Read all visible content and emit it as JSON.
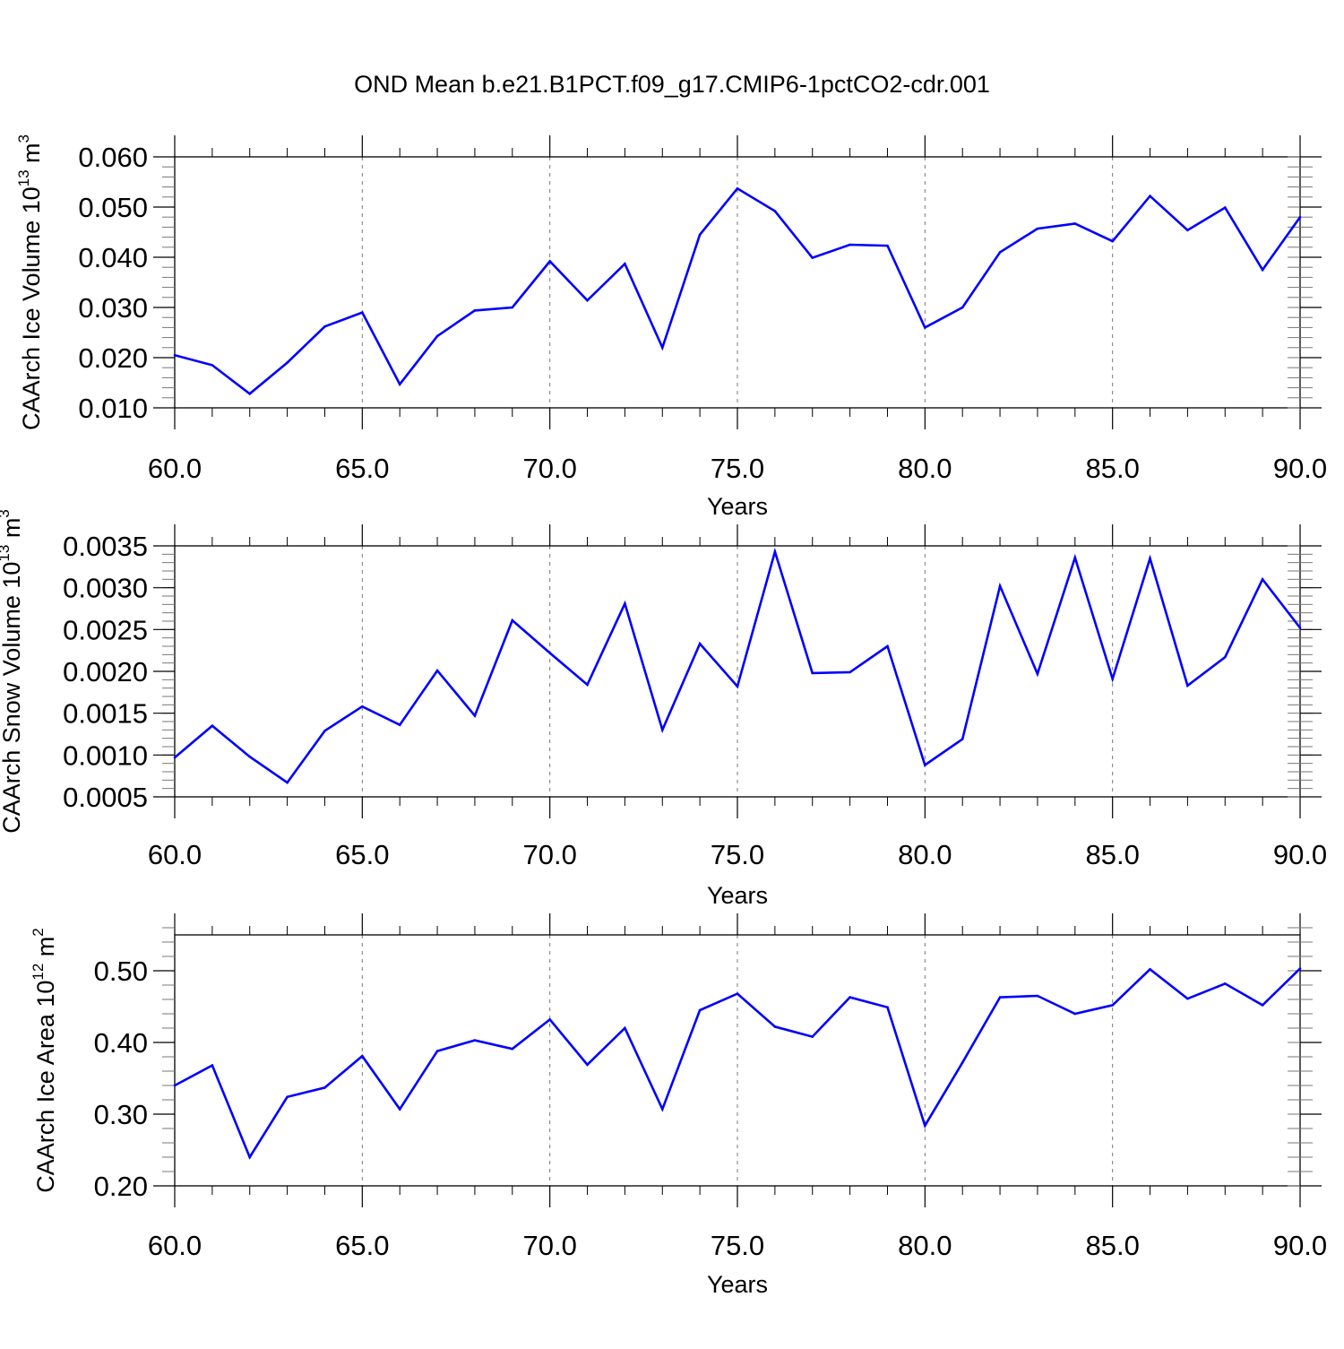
{
  "figure": {
    "title": "OND Mean b.e21.B1PCT.f09_g17.CMIP6-1pctCO2-cdr.001",
    "line_color": "#0000ff"
  },
  "chart_data": [
    {
      "type": "line",
      "ylabel_main": "CAArch Ice Volume 10",
      "ylabel_exp": "13",
      "ylabel_unit": " m",
      "ylabel_unit_exp": "3",
      "xlabel": "Years",
      "xlim": [
        60,
        90
      ],
      "ylim": [
        0.01,
        0.06
      ],
      "xticks": [
        60,
        65,
        70,
        75,
        80,
        85,
        90
      ],
      "xtick_labels": [
        "60.0",
        "65.0",
        "70.0",
        "75.0",
        "80.0",
        "85.0",
        "90.0"
      ],
      "yticks": [
        0.01,
        0.02,
        0.03,
        0.04,
        0.05,
        0.06
      ],
      "ytick_labels": [
        "0.010",
        "0.020",
        "0.030",
        "0.040",
        "0.050",
        "0.060"
      ],
      "y_minor_step": 0.002,
      "grid": "dashed vertical at major x ticks",
      "x": [
        60,
        61,
        62,
        63,
        64,
        65,
        66,
        67,
        68,
        69,
        70,
        71,
        72,
        73,
        74,
        75,
        76,
        77,
        78,
        79,
        80,
        81,
        82,
        83,
        84,
        85,
        86,
        87,
        88,
        89,
        90
      ],
      "values": [
        0.0205,
        0.0185,
        0.0128,
        0.019,
        0.0262,
        0.029,
        0.0147,
        0.0243,
        0.0294,
        0.03,
        0.0392,
        0.0314,
        0.0387,
        0.022,
        0.0445,
        0.0537,
        0.0492,
        0.0399,
        0.0425,
        0.0423,
        0.026,
        0.03,
        0.041,
        0.0457,
        0.0467,
        0.0432,
        0.0522,
        0.0454,
        0.0499,
        0.0375,
        0.048
      ]
    },
    {
      "type": "line",
      "ylabel_main": "CAArch Snow Volume 10",
      "ylabel_exp": "13",
      "ylabel_unit": " m",
      "ylabel_unit_exp": "3",
      "xlabel": "Years",
      "xlim": [
        60,
        90
      ],
      "ylim": [
        0.0005,
        0.0035
      ],
      "xticks": [
        60,
        65,
        70,
        75,
        80,
        85,
        90
      ],
      "xtick_labels": [
        "60.0",
        "65.0",
        "70.0",
        "75.0",
        "80.0",
        "85.0",
        "90.0"
      ],
      "yticks": [
        0.0005,
        0.001,
        0.0015,
        0.002,
        0.0025,
        0.003,
        0.0035
      ],
      "ytick_labels": [
        "0.0005",
        "0.0010",
        "0.0015",
        "0.0020",
        "0.0025",
        "0.0030",
        "0.0035"
      ],
      "y_minor_step": 0.0001,
      "grid": "dashed vertical at major x ticks",
      "x": [
        60,
        61,
        62,
        63,
        64,
        65,
        66,
        67,
        68,
        69,
        70,
        71,
        72,
        73,
        74,
        75,
        76,
        77,
        78,
        79,
        80,
        81,
        82,
        83,
        84,
        85,
        86,
        87,
        88,
        89,
        90
      ],
      "values": [
        0.00097,
        0.00135,
        0.00098,
        0.00067,
        0.00129,
        0.00158,
        0.00136,
        0.00201,
        0.00147,
        0.00261,
        0.00222,
        0.00184,
        0.00281,
        0.0013,
        0.00233,
        0.00182,
        0.00343,
        0.00198,
        0.00199,
        0.0023,
        0.00088,
        0.00119,
        0.00302,
        0.00197,
        0.00336,
        0.00191,
        0.00335,
        0.00183,
        0.00217,
        0.0031,
        0.00252
      ]
    },
    {
      "type": "line",
      "ylabel_main": "CAArch Ice Area 10",
      "ylabel_exp": "12",
      "ylabel_unit": " m",
      "ylabel_unit_exp": "2",
      "xlabel": "Years",
      "xlim": [
        60,
        90
      ],
      "ylim": [
        0.2,
        0.55
      ],
      "xticks": [
        60,
        65,
        70,
        75,
        80,
        85,
        90
      ],
      "xtick_labels": [
        "60.0",
        "65.0",
        "70.0",
        "75.0",
        "80.0",
        "85.0",
        "90.0"
      ],
      "yticks": [
        0.2,
        0.3,
        0.4,
        0.5
      ],
      "ytick_labels": [
        "0.20",
        "0.30",
        "0.40",
        "0.50"
      ],
      "y_minor_step": 0.02,
      "grid": "dashed vertical at major x ticks",
      "x": [
        60,
        61,
        62,
        63,
        64,
        65,
        66,
        67,
        68,
        69,
        70,
        71,
        72,
        73,
        74,
        75,
        76,
        77,
        78,
        79,
        80,
        81,
        82,
        83,
        84,
        85,
        86,
        87,
        88,
        89,
        90
      ],
      "values": [
        0.34,
        0.368,
        0.24,
        0.324,
        0.337,
        0.381,
        0.307,
        0.388,
        0.403,
        0.391,
        0.432,
        0.369,
        0.42,
        0.307,
        0.445,
        0.468,
        0.422,
        0.408,
        0.463,
        0.449,
        0.284,
        0.372,
        0.463,
        0.465,
        0.44,
        0.452,
        0.502,
        0.461,
        0.482,
        0.452,
        0.503
      ]
    }
  ]
}
